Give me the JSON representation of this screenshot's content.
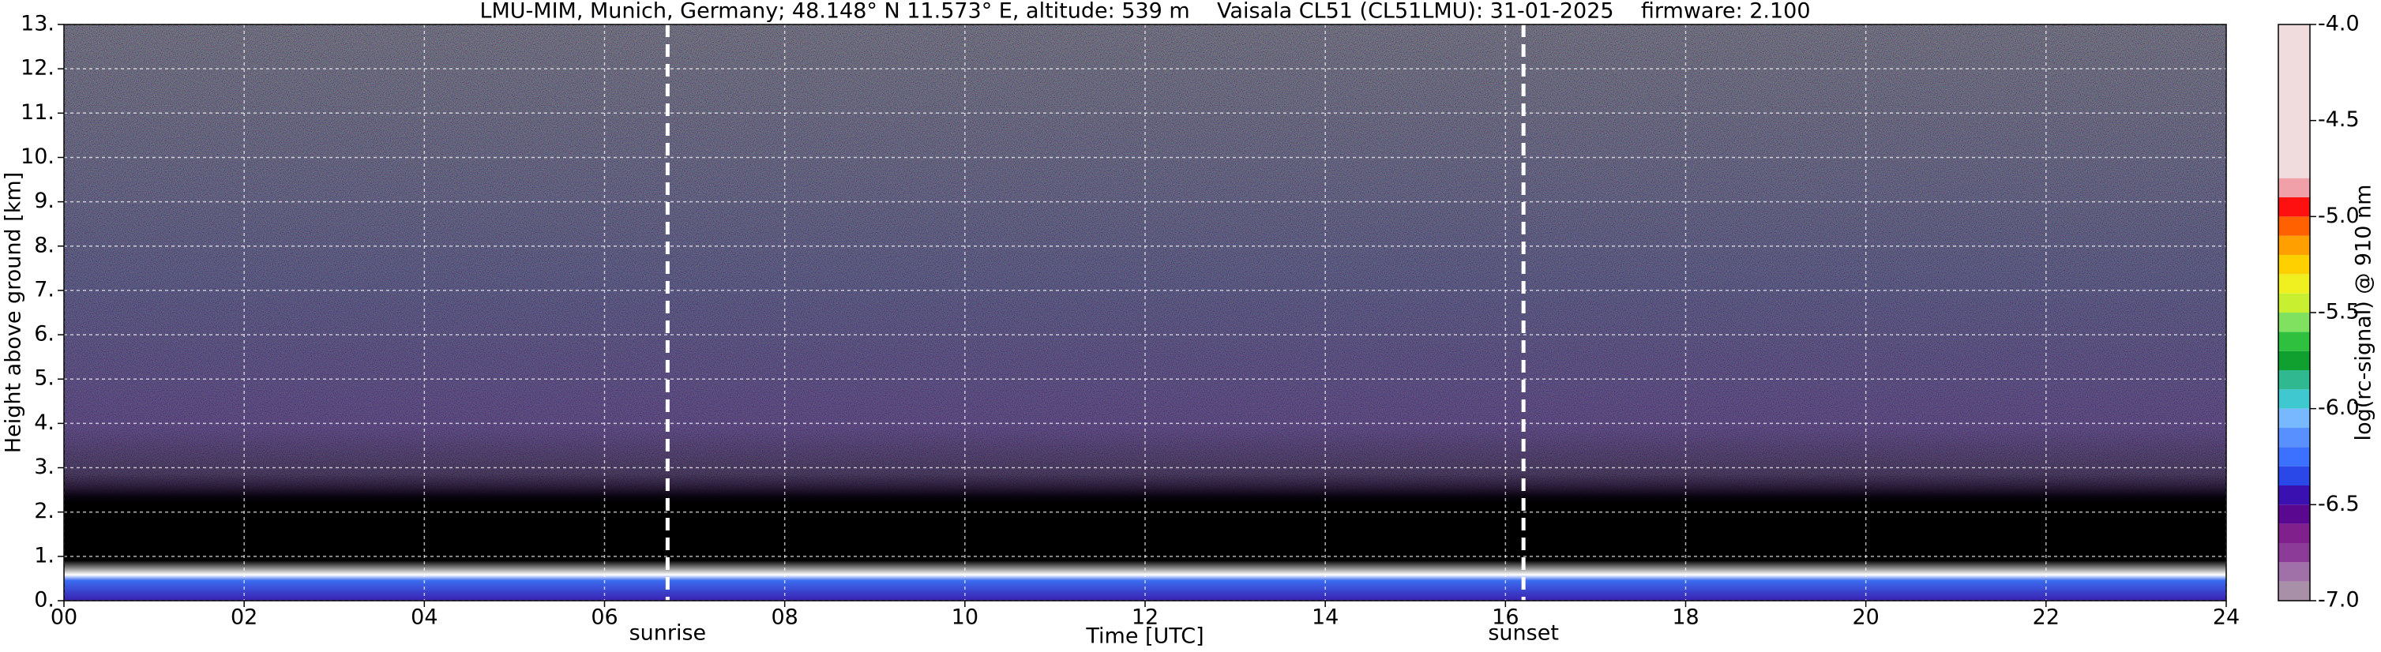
{
  "chart_data": {
    "type": "heatmap",
    "title": "LMU-MIM, Munich, Germany; 48.148° N 11.573° E, altitude: 539 m    Vaisala CL51 (CL51LMU): 31-01-2025    firmware: 2.100",
    "xlabel": "Time [UTC]",
    "ylabel": "Height above ground [km]",
    "xlim": [
      0,
      24
    ],
    "xticks": [
      {
        "value": 0,
        "label": "00"
      },
      {
        "value": 2,
        "label": "02"
      },
      {
        "value": 4,
        "label": "04"
      },
      {
        "value": 6,
        "label": "06"
      },
      {
        "value": 8,
        "label": "08"
      },
      10,
      12,
      14,
      16,
      18,
      20,
      22,
      24
    ],
    "ylim": [
      0,
      13
    ],
    "yticks": [
      {
        "value": 0,
        "label": "0."
      },
      {
        "value": 1,
        "label": "1."
      },
      {
        "value": 2,
        "label": "2."
      },
      {
        "value": 3,
        "label": "3."
      },
      {
        "value": 4,
        "label": "4."
      },
      {
        "value": 5,
        "label": "5."
      },
      {
        "value": 6,
        "label": "6."
      },
      {
        "value": 7,
        "label": "7."
      },
      {
        "value": 8,
        "label": "8."
      },
      {
        "value": 9,
        "label": "9."
      },
      {
        "value": 10,
        "label": "10."
      },
      {
        "value": 11,
        "label": "11."
      },
      {
        "value": 12,
        "label": "12."
      },
      {
        "value": 13,
        "label": "13."
      }
    ],
    "grid": true,
    "annotations": [
      {
        "text": "sunrise",
        "x": 6.7
      },
      {
        "text": "sunset",
        "x": 16.2
      }
    ],
    "colorbar": {
      "label": "log(rc-signal) @ 910 nm",
      "lim": [
        -7.0,
        -4.0
      ],
      "ticks": [
        {
          "value": -7.0,
          "label": "-7.0"
        },
        {
          "value": -6.5,
          "label": "-6.5"
        },
        {
          "value": -6.0,
          "label": "-6.0"
        },
        {
          "value": -5.5,
          "label": "-5.5"
        },
        {
          "value": -5.0,
          "label": "-5.0"
        },
        {
          "value": -4.5,
          "label": "-4.5"
        },
        {
          "value": -4.0,
          "label": "-4.0"
        }
      ],
      "bounds": [
        -7.0,
        -6.9,
        -6.8,
        -6.7,
        -6.6,
        -6.5,
        -6.4,
        -6.3,
        -6.2,
        -6.1,
        -6.0,
        -5.9,
        -5.8,
        -5.7,
        -5.6,
        -5.5,
        -5.4,
        -5.3,
        -5.2,
        -5.1,
        -5.0,
        -4.9,
        -4.8,
        -4.0
      ],
      "colors": [
        "#a890a8",
        "#a070a8",
        "#8c3c98",
        "#80208c",
        "#5a0890",
        "#3a10b0",
        "#2a48e8",
        "#3c70ff",
        "#5890ff",
        "#78b8ff",
        "#40c8d0",
        "#30b890",
        "#10a030",
        "#30c040",
        "#80e060",
        "#c8f030",
        "#f0f020",
        "#ffd000",
        "#ffa000",
        "#ff6000",
        "#ff1010",
        "#f0a0a8",
        "#f0dcdc"
      ]
    }
  }
}
